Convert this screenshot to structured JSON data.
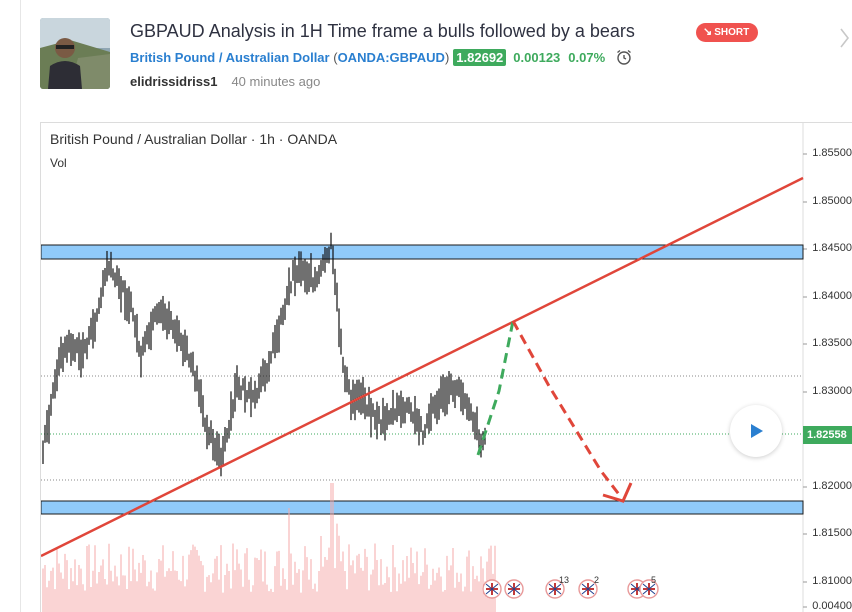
{
  "idea": {
    "title": "GBPAUD Analysis in 1H Time frame a bulls followed by a bears",
    "badge": "SHORT",
    "symbol_name": "British Pound / Australian Dollar",
    "exchange_symbol": "OANDA:GBPAUD",
    "price": "1.82692",
    "change": "0.00123",
    "change_pct": "0.07%",
    "author": "elidrissidriss1",
    "published": "40 minutes ago"
  },
  "chart": {
    "legend": "British Pound / Australian Dollar · 1h · OANDA",
    "volume_label": "Vol",
    "price_axis": [
      "1.85500",
      "1.85000",
      "1.84500",
      "1.84000",
      "1.83500",
      "1.83000",
      "1.82500",
      "1.82000",
      "1.81500",
      "1.81000",
      "0.00400"
    ],
    "current_price_tag": "1.82558",
    "event_counts": [
      "13",
      "2",
      "5"
    ]
  },
  "colors": {
    "up": "#3eaa5d",
    "short": "#f0524f",
    "link": "#2a7fd0",
    "zone": "#90caf9",
    "trendline": "#e0463a",
    "projection_up": "#3eaa5d",
    "projection_down": "#e0463a",
    "volume": "#f4a9a9"
  },
  "icons": {
    "badge": "down-arrow-icon",
    "alert": "alarm-clock-icon",
    "next": "chevron-right-icon",
    "play": "play-icon",
    "events": "flag-icon"
  }
}
